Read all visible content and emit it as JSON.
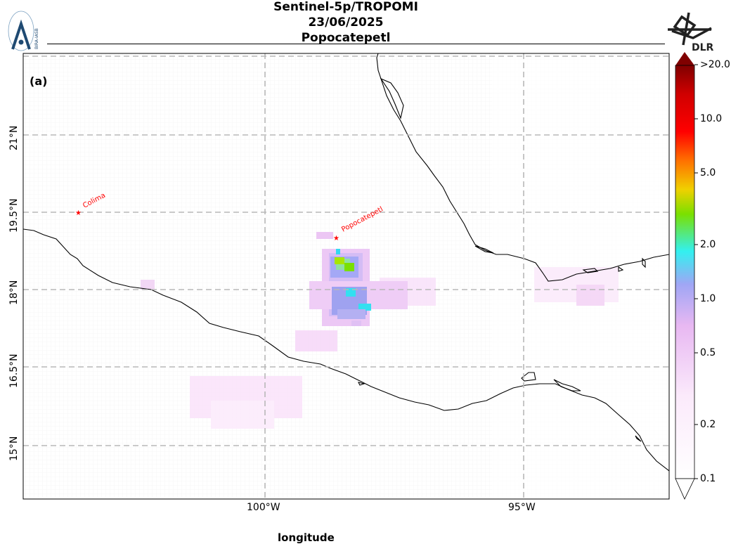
{
  "header": {
    "line1": "Sentinel-5p/TROPOMI",
    "line2": "23/06/2025",
    "line3": "Popocatepetl"
  },
  "panel_label": "(a)",
  "logos": {
    "left": {
      "name": "bira-iasb-logo",
      "text": "BIRA-IASB"
    },
    "right": {
      "name": "dlr-logo",
      "text": "DLR"
    }
  },
  "map": {
    "lat_ticks": [
      "21°N",
      "19.5°N",
      "18°N",
      "16.5°N",
      "15°N"
    ],
    "lon_ticks": [
      "100°W",
      "95°W"
    ],
    "lat_range": [
      14.0,
      22.5
    ],
    "lon_range": [
      104.7,
      92.2
    ],
    "gridlines": true,
    "volcanoes": [
      {
        "name": "Colima",
        "lat": 19.51,
        "lon": 103.62
      },
      {
        "name": "Popocatepetl",
        "lat": 19.02,
        "lon": 98.62
      }
    ],
    "colors": {
      "coast": "#000000",
      "grid": "#b8b8b8",
      "marker": "#ff0000"
    }
  },
  "colorbar": {
    "ticks": [
      "0.1",
      "0.2",
      "0.5",
      "1.0",
      "2.0",
      "5.0",
      "10.0",
      ">20.0"
    ],
    "values": [
      0.1,
      0.2,
      0.5,
      1.0,
      2.0,
      5.0,
      10.0,
      20.0
    ],
    "scale": "log",
    "stops": [
      "#ffffff",
      "#fbeafb",
      "#e8b8f2",
      "#9fa6f5",
      "#33f0f0",
      "#7ae000",
      "#f0d000",
      "#ff7000",
      "#ff0000",
      "#d00000",
      "#800000"
    ]
  },
  "bottom_text": "longitude"
}
